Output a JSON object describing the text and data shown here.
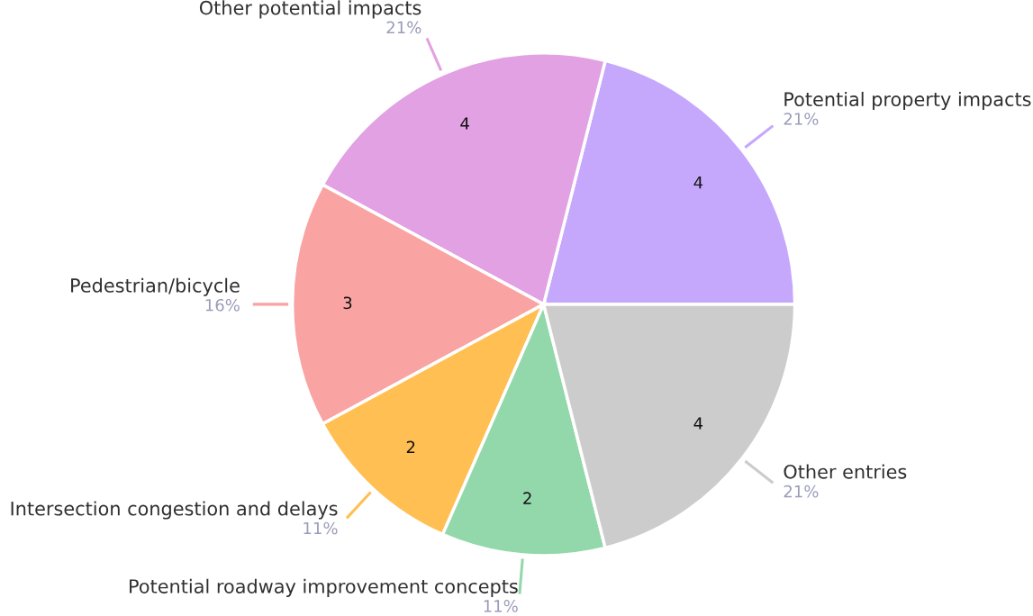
{
  "chart_data": {
    "type": "pie",
    "categories": [
      "Potential property impacts",
      "Other potential impacts",
      "Pedestrian/bicycle",
      "Intersection congestion and delays",
      "Potential roadway improvement concepts",
      "Other entries"
    ],
    "values": [
      4,
      4,
      3,
      2,
      2,
      4
    ],
    "colors": [
      "#c5a8fc",
      "#e2a1e3",
      "#f9a3a3",
      "#ffbf52",
      "#93d8ab",
      "#cccccc"
    ],
    "data_labels": true,
    "annotations": [
      "21%",
      "21%",
      "16%",
      "11%",
      "11%",
      "21%"
    ]
  }
}
